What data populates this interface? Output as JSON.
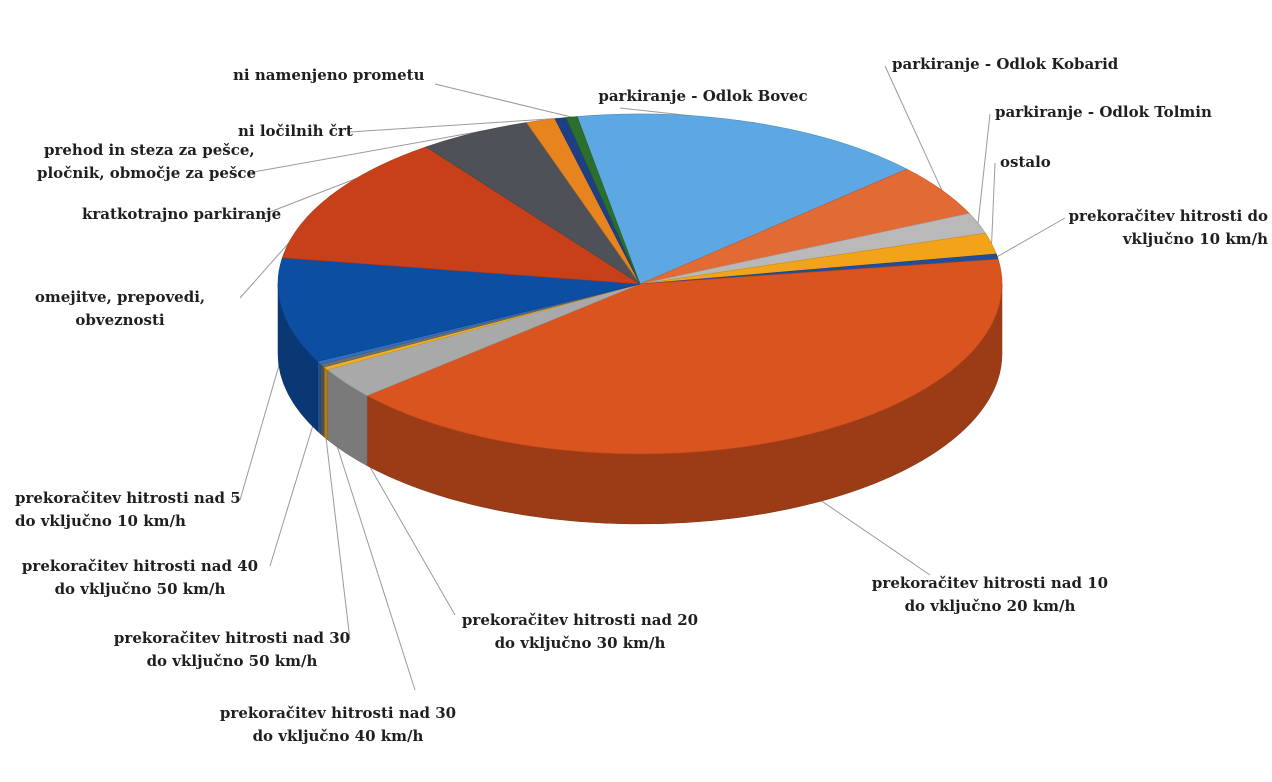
{
  "chart_data": {
    "type": "pie",
    "style": "3d",
    "title": "",
    "slices": [
      {
        "label": "parkiranje - Odlok Bovec",
        "value": 16.0,
        "color": "#5da7e2"
      },
      {
        "label": "parkiranje - Odlok Kobarid",
        "value": 5.0,
        "color": "#e26a35"
      },
      {
        "label": "parkiranje - Odlok Tolmin",
        "value": 2.0,
        "color": "#b9b9b9"
      },
      {
        "label": "ostalo",
        "value": 2.0,
        "color": "#f2a31a"
      },
      {
        "label": "prekoračitev hitrosti do vključno 10 km/h",
        "value": 0.5,
        "color": "#1f4f9a"
      },
      {
        "label": "prekoračitev hitrosti nad 10 do vključno 20 km/h",
        "value": 41.0,
        "color": "#d9541e"
      },
      {
        "label": "prekoračitev hitrosti nad 20 do vključno 30 km/h",
        "value": 3.0,
        "color": "#a9a9a9"
      },
      {
        "label": "prekoračitev hitrosti nad 30 do vključno 40 km/h",
        "value": 0.3,
        "color": "#f0b020"
      },
      {
        "label": "prekoračitev hitrosti nad 30 do vključno 50 km/h",
        "value": 0.3,
        "color": "#6f6f6f"
      },
      {
        "label": "prekoračitev hitrosti nad 40 do vključno 50 km/h",
        "value": 0.3,
        "color": "#2f6fc2"
      },
      {
        "label": "prekoračitev hitrosti nad 5 do vključno 10 km/h",
        "value": 10.0,
        "color": "#0c4ea2"
      },
      {
        "label": "omejitve, prepovedi, obveznosti",
        "value": 12.5,
        "color": "#c8401a"
      },
      {
        "label": "kratkotrajno parkiranje",
        "value": 5.0,
        "color": "#4e5258"
      },
      {
        "label": "prehod in steza za pešce, pločnik, območje za pešce",
        "value": 1.3,
        "color": "#e8841e"
      },
      {
        "label": "ni ločilnih črt",
        "value": 0.5,
        "color": "#1e3f86"
      },
      {
        "label": "ni namenjeno prometu",
        "value": 0.5,
        "color": "#2c6e2c"
      }
    ],
    "legend": "none",
    "labels": "outside-with-leader-lines"
  },
  "labels": {
    "bovec": "parkiranje - Odlok Bovec",
    "kobarid": "parkiranje - Odlok Kobarid",
    "tolmin": "parkiranje - Odlok Tolmin",
    "ostalo": "ostalo",
    "do10_l1": "prekoračitev hitrosti do",
    "do10_l2": "vključno 10 km/h",
    "n10_l1": "prekoračitev hitrosti nad 10",
    "n10_l2": "do vključno 20 km/h",
    "n20_l1": "prekoračitev hitrosti nad 20",
    "n20_l2": "do vključno 30 km/h",
    "n3040_l1": "prekoračitev hitrosti nad 30",
    "n3040_l2": "do vključno 40 km/h",
    "n3050_l1": "prekoračitev hitrosti nad 30",
    "n3050_l2": "do vključno 50 km/h",
    "n40_l1": "prekoračitev hitrosti nad 40",
    "n40_l2": "do vključno 50 km/h",
    "n5_l1": "prekoračitev hitrosti nad 5",
    "n5_l2": "do vključno 10 km/h",
    "omej_l1": "omejitve, prepovedi,",
    "omej_l2": "obveznosti",
    "kratko": "kratkotrajno parkiranje",
    "prehod_l1": "prehod in steza za pešce,",
    "prehod_l2": "pločnik, območje za pešce",
    "locilne": "ni ločilnih črt",
    "namenjeno": "ni namenjeno prometu"
  }
}
